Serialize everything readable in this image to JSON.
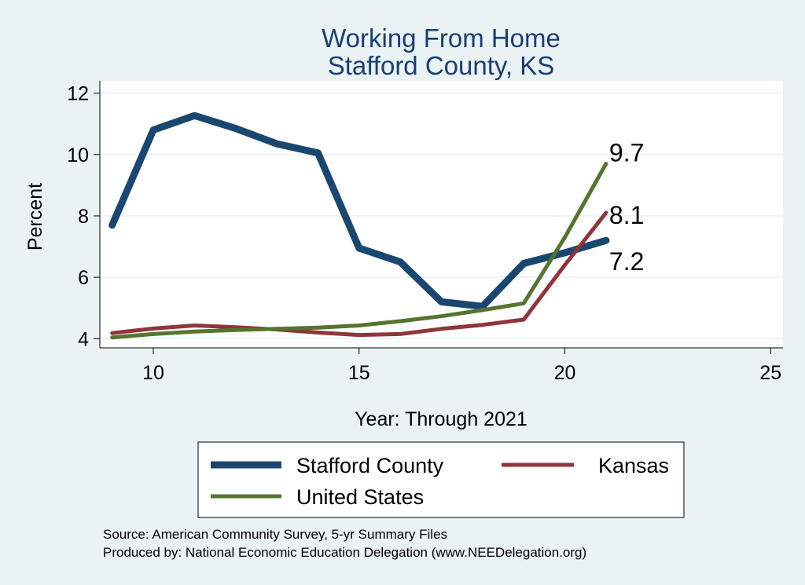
{
  "chart_data": {
    "type": "line",
    "title": [
      "Working From Home",
      "Stafford County, KS"
    ],
    "xlabel": "Year: Through 2021",
    "ylabel": "Percent",
    "xlim": [
      8.7,
      25.3
    ],
    "ylim": [
      3.7,
      12.4
    ],
    "xticks": [
      10,
      15,
      20,
      25
    ],
    "yticks": [
      4,
      6,
      8,
      10,
      12
    ],
    "grid": true,
    "legend_position": "bottom",
    "series": [
      {
        "name": "Stafford County",
        "color": "#1a476f",
        "width": 9,
        "x": [
          9,
          10,
          11,
          12,
          13,
          14,
          15,
          16,
          17,
          18,
          19,
          20,
          21
        ],
        "y": [
          7.7,
          10.8,
          11.27,
          10.85,
          10.35,
          10.05,
          6.95,
          6.5,
          5.2,
          5.05,
          6.45,
          6.8,
          7.2
        ],
        "end_label": "7.2"
      },
      {
        "name": "Kansas",
        "color": "#90353b",
        "width": 5,
        "x": [
          9,
          10,
          11,
          12,
          13,
          14,
          15,
          16,
          17,
          18,
          19,
          20,
          21
        ],
        "y": [
          4.18,
          4.33,
          4.43,
          4.37,
          4.3,
          4.2,
          4.12,
          4.15,
          4.32,
          4.45,
          4.62,
          6.4,
          8.1
        ],
        "end_label": "8.1"
      },
      {
        "name": "United States",
        "color": "#55752f",
        "width": 5,
        "x": [
          9,
          10,
          11,
          12,
          13,
          14,
          15,
          16,
          17,
          18,
          19,
          20,
          21
        ],
        "y": [
          4.04,
          4.15,
          4.23,
          4.28,
          4.32,
          4.36,
          4.43,
          4.57,
          4.73,
          4.93,
          5.15,
          7.3,
          9.7
        ],
        "end_label": "9.7"
      }
    ]
  },
  "notes": [
    "Source: American Community Survey, 5-yr Summary Files",
    "Produced by: National Economic Education Delegation (www.NEEDelegation.org)"
  ]
}
